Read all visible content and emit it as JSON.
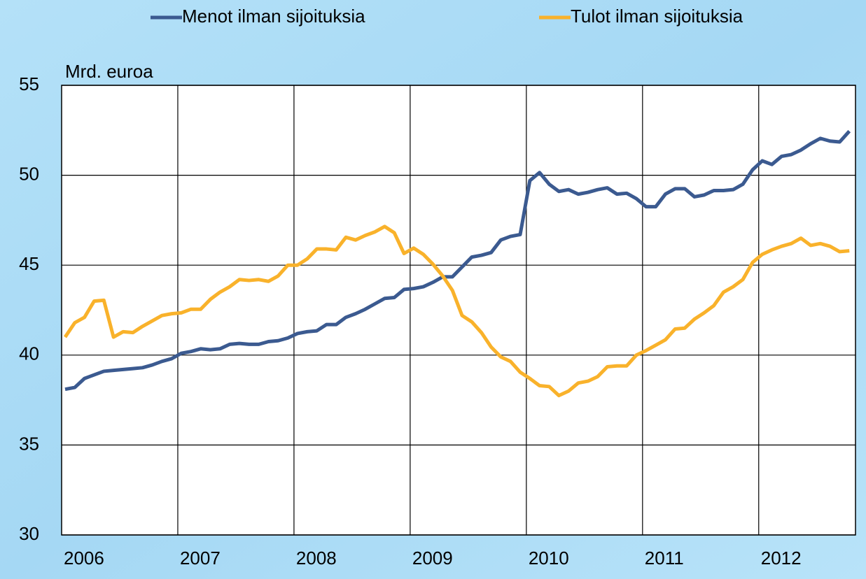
{
  "chart_data": {
    "type": "line",
    "y_axis_label": "Mrd. euroa",
    "categories": [
      "2006",
      null,
      null,
      null,
      null,
      null,
      null,
      null,
      null,
      null,
      null,
      null,
      "2007",
      null,
      null,
      null,
      null,
      null,
      null,
      null,
      null,
      null,
      null,
      null,
      "2008",
      null,
      null,
      null,
      null,
      null,
      null,
      null,
      null,
      null,
      null,
      null,
      "2009",
      null,
      null,
      null,
      null,
      null,
      null,
      null,
      null,
      null,
      null,
      null,
      "2010",
      null,
      null,
      null,
      null,
      null,
      null,
      null,
      null,
      null,
      null,
      null,
      "2011",
      null,
      null,
      null,
      null,
      null,
      null,
      null,
      null,
      null,
      null,
      null,
      "2012",
      null,
      null,
      null,
      null,
      null,
      null,
      null,
      null,
      null
    ],
    "series": [
      {
        "name": "Menot ilman sijoituksia",
        "color": "#3b5a90",
        "values": [
          38.1,
          38.2,
          38.7,
          38.9,
          39.1,
          39.15,
          39.2,
          39.25,
          39.3,
          39.45,
          39.65,
          39.8,
          40.1,
          40.2,
          40.35,
          40.3,
          40.35,
          40.6,
          40.65,
          40.6,
          40.6,
          40.75,
          40.8,
          40.95,
          41.2,
          41.3,
          41.35,
          41.7,
          41.7,
          42.1,
          42.3,
          42.55,
          42.85,
          43.15,
          43.2,
          43.65,
          43.7,
          43.8,
          44.05,
          44.35,
          44.35,
          44.9,
          45.45,
          45.55,
          45.7,
          46.4,
          46.6,
          46.7,
          49.7,
          50.15,
          49.5,
          49.1,
          49.2,
          48.95,
          49.05,
          49.2,
          49.3,
          48.95,
          49.0,
          48.7,
          48.25,
          48.25,
          48.95,
          49.25,
          49.25,
          48.8,
          48.9,
          49.15,
          49.15,
          49.2,
          49.5,
          50.3,
          50.8,
          50.6,
          51.05,
          51.15,
          51.4,
          51.75,
          52.05,
          51.9,
          51.85,
          52.45
        ]
      },
      {
        "name": "Tulot ilman sijoituksia",
        "color": "#f9b22b",
        "values": [
          41.0,
          41.8,
          42.1,
          43.0,
          43.05,
          41.0,
          41.3,
          41.25,
          41.6,
          41.9,
          42.2,
          42.3,
          42.35,
          42.55,
          42.55,
          43.1,
          43.5,
          43.8,
          44.2,
          44.15,
          44.2,
          44.1,
          44.4,
          45.0,
          45.0,
          45.35,
          45.9,
          45.9,
          45.85,
          46.55,
          46.4,
          46.65,
          46.85,
          47.15,
          46.8,
          45.65,
          45.95,
          45.6,
          45.05,
          44.4,
          43.6,
          42.2,
          41.85,
          41.25,
          40.45,
          39.9,
          39.65,
          39.05,
          38.7,
          38.3,
          38.25,
          37.75,
          38.0,
          38.45,
          38.55,
          38.8,
          39.35,
          39.4,
          39.4,
          40.0,
          40.25,
          40.55,
          40.85,
          41.45,
          41.5,
          42.0,
          42.35,
          42.75,
          43.5,
          43.8,
          44.2,
          45.15,
          45.6,
          45.85,
          46.05,
          46.2,
          46.5,
          46.1,
          46.2,
          46.05,
          45.75,
          45.8
        ]
      }
    ],
    "ylim": [
      30,
      55
    ],
    "yticks": [
      30,
      35,
      40,
      45,
      50,
      55
    ],
    "grid": true
  }
}
